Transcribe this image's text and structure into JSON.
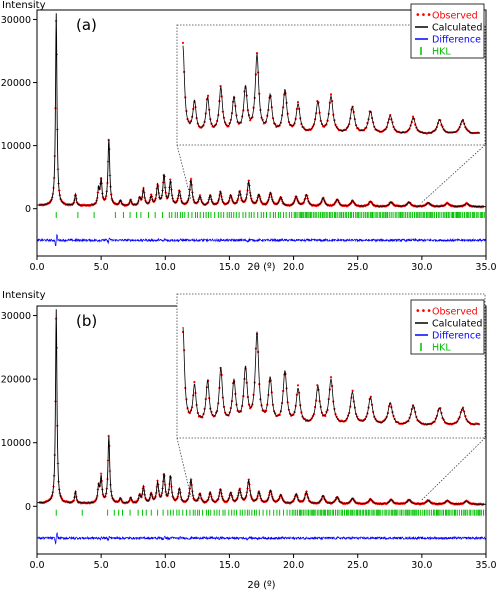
{
  "colors": {
    "observed": "#ff0000",
    "calculated": "#000000",
    "difference": "#0000ff",
    "hkl": "#00c000"
  },
  "chart_data": [
    {
      "type": "line",
      "panel_label": "(a)",
      "xlabel": "2θ (º)",
      "ylabel": "Intensity",
      "xlim": [
        0,
        35
      ],
      "ylim": [
        -7500,
        31500
      ],
      "x_ticks": [
        "0.0",
        "5.0",
        "10.0",
        "15.0",
        "20.0",
        "25.0",
        "30.0",
        "35.0"
      ],
      "y_ticks": [
        "0",
        "10000",
        "20000",
        "30000"
      ],
      "legend": {
        "position": "top-right",
        "entries": [
          "Observed",
          "Calculated",
          "Difference",
          "HKL"
        ]
      },
      "inset": {
        "x_range": [
          12.0,
          30.0
        ],
        "description_free": true
      },
      "peaks": [
        {
          "x": 1.5,
          "y": 30500
        },
        {
          "x": 3.0,
          "y": 1800
        },
        {
          "x": 4.8,
          "y": 2500
        },
        {
          "x": 5.0,
          "y": 4000
        },
        {
          "x": 5.6,
          "y": 10500
        },
        {
          "x": 6.5,
          "y": 800
        },
        {
          "x": 7.3,
          "y": 900
        },
        {
          "x": 8.0,
          "y": 1200
        },
        {
          "x": 8.3,
          "y": 2600
        },
        {
          "x": 8.9,
          "y": 1500
        },
        {
          "x": 9.4,
          "y": 3200
        },
        {
          "x": 9.9,
          "y": 4800
        },
        {
          "x": 10.4,
          "y": 3800
        },
        {
          "x": 11.1,
          "y": 2300
        },
        {
          "x": 12.0,
          "y": 4200
        },
        {
          "x": 12.7,
          "y": 1500
        },
        {
          "x": 13.5,
          "y": 1700
        },
        {
          "x": 14.3,
          "y": 2200
        },
        {
          "x": 15.1,
          "y": 1700
        },
        {
          "x": 15.8,
          "y": 2200
        },
        {
          "x": 16.5,
          "y": 3800
        },
        {
          "x": 17.3,
          "y": 1800
        },
        {
          "x": 18.2,
          "y": 2100
        },
        {
          "x": 19.0,
          "y": 1400
        },
        {
          "x": 20.2,
          "y": 1500
        },
        {
          "x": 21.0,
          "y": 1800
        },
        {
          "x": 22.3,
          "y": 1300
        },
        {
          "x": 23.4,
          "y": 1100
        },
        {
          "x": 24.6,
          "y": 900
        },
        {
          "x": 26.0,
          "y": 800
        },
        {
          "x": 27.6,
          "y": 700
        },
        {
          "x": 29.0,
          "y": 700
        },
        {
          "x": 30.5,
          "y": 600
        },
        {
          "x": 32.0,
          "y": 550
        },
        {
          "x": 33.5,
          "y": 500
        }
      ],
      "background": 300,
      "hkl_level": -1000,
      "difference_offset": -5000
    },
    {
      "type": "line",
      "panel_label": "(b)",
      "xlabel": "2θ (º)",
      "ylabel": "Intensity",
      "xlim": [
        0,
        35
      ],
      "ylim": [
        -7500,
        31500
      ],
      "x_ticks": [
        "0.0",
        "5.0",
        "10.0",
        "15.0",
        "20.0",
        "25.0",
        "30.0",
        "35.0"
      ],
      "y_ticks": [
        "0",
        "10000",
        "20000",
        "30000"
      ],
      "legend": {
        "position": "top-right",
        "entries": [
          "Observed",
          "Calculated",
          "Difference",
          "HKL"
        ]
      },
      "inset": {
        "x_range": [
          12.0,
          30.0
        ]
      },
      "peaks": [
        {
          "x": 1.5,
          "y": 30500
        },
        {
          "x": 3.0,
          "y": 1800
        },
        {
          "x": 4.8,
          "y": 2500
        },
        {
          "x": 5.0,
          "y": 4000
        },
        {
          "x": 5.6,
          "y": 10500
        },
        {
          "x": 6.5,
          "y": 800
        },
        {
          "x": 7.3,
          "y": 900
        },
        {
          "x": 8.0,
          "y": 1200
        },
        {
          "x": 8.3,
          "y": 2600
        },
        {
          "x": 8.9,
          "y": 1500
        },
        {
          "x": 9.4,
          "y": 3200
        },
        {
          "x": 9.9,
          "y": 4500
        },
        {
          "x": 10.4,
          "y": 4200
        },
        {
          "x": 11.1,
          "y": 2300
        },
        {
          "x": 12.0,
          "y": 3800
        },
        {
          "x": 12.7,
          "y": 1500
        },
        {
          "x": 13.5,
          "y": 1700
        },
        {
          "x": 14.3,
          "y": 2200
        },
        {
          "x": 15.1,
          "y": 1700
        },
        {
          "x": 15.8,
          "y": 2200
        },
        {
          "x": 16.5,
          "y": 3600
        },
        {
          "x": 17.3,
          "y": 1800
        },
        {
          "x": 18.2,
          "y": 2100
        },
        {
          "x": 19.0,
          "y": 1400
        },
        {
          "x": 20.2,
          "y": 1500
        },
        {
          "x": 21.0,
          "y": 1800
        },
        {
          "x": 22.3,
          "y": 1300
        },
        {
          "x": 23.4,
          "y": 1100
        },
        {
          "x": 24.6,
          "y": 900
        },
        {
          "x": 26.0,
          "y": 800
        },
        {
          "x": 27.6,
          "y": 700
        },
        {
          "x": 29.0,
          "y": 700
        },
        {
          "x": 30.5,
          "y": 600
        },
        {
          "x": 32.0,
          "y": 550
        },
        {
          "x": 33.5,
          "y": 500
        }
      ],
      "background": 300,
      "hkl_level": -1000,
      "difference_offset": -5000
    }
  ]
}
